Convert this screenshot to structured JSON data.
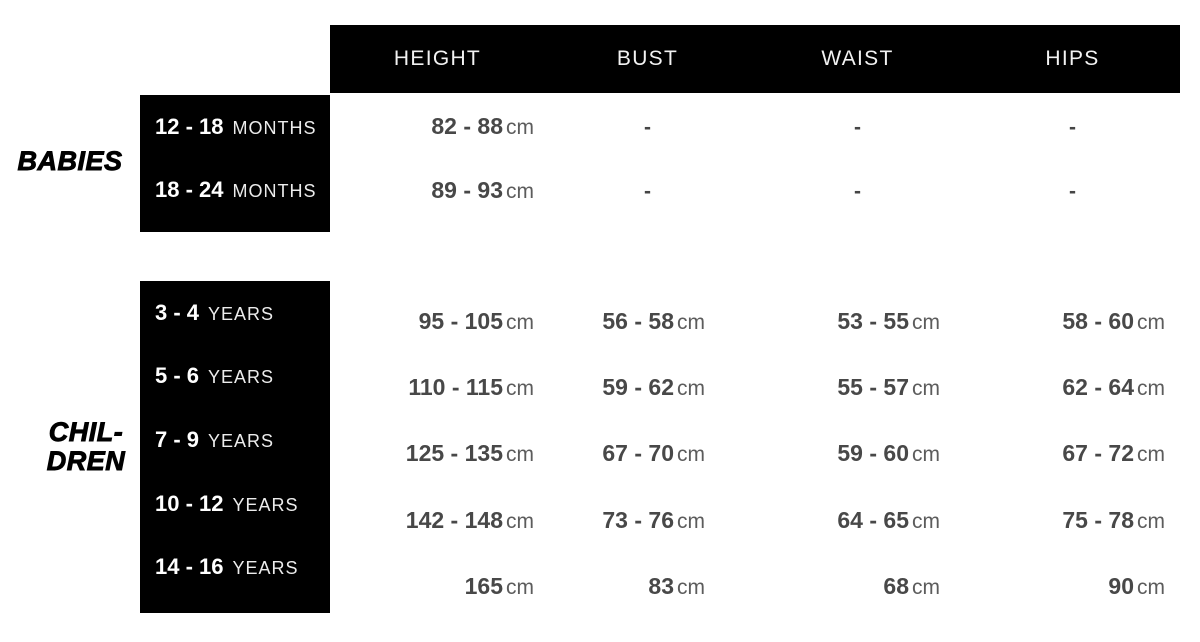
{
  "header": {
    "col1": "HEIGHT",
    "col2": "BUST",
    "col3": "WAIST",
    "col4": "HIPS"
  },
  "units": {
    "cm": "cm",
    "dash": "-"
  },
  "babies": {
    "group_label": "BABIES",
    "rows": [
      {
        "range": "12 - 18",
        "unit": "MONTHS",
        "height": "82 - 88"
      },
      {
        "range": "18 - 24",
        "unit": "MONTHS",
        "height": "89 - 93"
      }
    ]
  },
  "children": {
    "group_label_line1": "CHIL-",
    "group_label_line2": "DREN",
    "rows": [
      {
        "range": "3 - 4",
        "unit": "YEARS",
        "height": "95 - 105",
        "bust": "56 - 58",
        "waist": "53 - 55",
        "hips": "58 - 60"
      },
      {
        "range": "5 - 6",
        "unit": "YEARS",
        "height": "110 - 115",
        "bust": "59 - 62",
        "waist": "55 - 57",
        "hips": "62 - 64"
      },
      {
        "range": "7 - 9",
        "unit": "YEARS",
        "height": "125 - 135",
        "bust": "67 - 70",
        "waist": "59 - 60",
        "hips": "67 - 72"
      },
      {
        "range": "10 - 12",
        "unit": "YEARS",
        "height": "142 - 148",
        "bust": "73 - 76",
        "waist": "64 - 65",
        "hips": "75 - 78"
      },
      {
        "range": "14 - 16",
        "unit": "YEARS",
        "height": "165",
        "bust": "83",
        "waist": "68",
        "hips": "90"
      }
    ]
  },
  "colors": {
    "panel": "#000000",
    "header_text": "#f2f2f2",
    "range_text": "#ffffff",
    "value_text": "#484848",
    "background": "#ffffff"
  },
  "chart_data": {
    "type": "table",
    "columns": [
      "",
      "HEIGHT",
      "BUST",
      "WAIST",
      "HIPS"
    ],
    "groups": [
      {
        "group": "BABIES",
        "rows": [
          {
            "label": "12 - 18 MONTHS",
            "height": "82 - 88 cm",
            "bust": "-",
            "waist": "-",
            "hips": "-"
          },
          {
            "label": "18 - 24 MONTHS",
            "height": "89 - 93 cm",
            "bust": "-",
            "waist": "-",
            "hips": "-"
          }
        ]
      },
      {
        "group": "CHILDREN",
        "rows": [
          {
            "label": "3 - 4 YEARS",
            "height": "95 - 105 cm",
            "bust": "56 - 58 cm",
            "waist": "53 - 55 cm",
            "hips": "58 - 60 cm"
          },
          {
            "label": "5 - 6 YEARS",
            "height": "110 - 115 cm",
            "bust": "59 - 62 cm",
            "waist": "55 - 57 cm",
            "hips": "62 - 64 cm"
          },
          {
            "label": "7 - 9 YEARS",
            "height": "125 - 135 cm",
            "bust": "67 - 70 cm",
            "waist": "59 - 60 cm",
            "hips": "67 - 72 cm"
          },
          {
            "label": "10 - 12 YEARS",
            "height": "142 - 148 cm",
            "bust": "73 - 76 cm",
            "waist": "64 - 65 cm",
            "hips": "75 - 78 cm"
          },
          {
            "label": "14 - 16 YEARS",
            "height": "165 cm",
            "bust": "83 cm",
            "waist": "68 cm",
            "hips": "90 cm"
          }
        ]
      }
    ]
  }
}
